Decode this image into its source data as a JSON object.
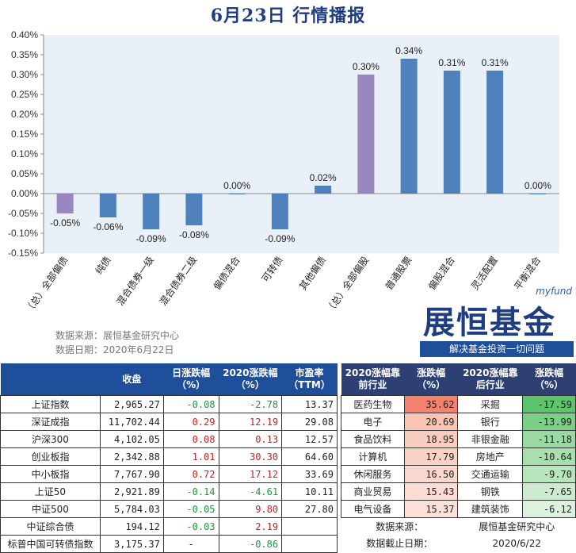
{
  "title": "6月23日 行情播报",
  "chart_data": {
    "type": "bar",
    "categories": [
      "（总）全部偏债",
      "纯债",
      "混合债券一级",
      "混合债券二级",
      "偏债混合",
      "可转债",
      "其他偏债",
      "（总）全部偏股",
      "普通股票",
      "偏股混合",
      "灵活配置",
      "平衡混合"
    ],
    "values": [
      -0.05,
      -0.06,
      -0.09,
      -0.08,
      0.0,
      -0.09,
      0.02,
      0.3,
      0.34,
      0.31,
      0.31,
      0.0
    ],
    "data_labels": [
      "-0.05%",
      "-0.06%",
      "-0.09%",
      "-0.08%",
      "0.00%",
      "-0.09%",
      "0.02%",
      "0.30%",
      "0.34%",
      "0.31%",
      "0.31%",
      "0.00%"
    ],
    "highlight": [
      0,
      7
    ],
    "ylim": [
      -0.15,
      0.4
    ],
    "yticks": [
      "-0.15%",
      "-0.10%",
      "-0.05%",
      "0.00%",
      "0.05%",
      "0.10%",
      "0.15%",
      "0.20%",
      "0.25%",
      "0.30%",
      "0.35%",
      "0.40%"
    ],
    "colors": {
      "bar": "#4f81bd",
      "highlight": "#9b87c0",
      "plot_bg": "#eaf0f8"
    }
  },
  "source_line": "数据来源：展恒基金研究中心",
  "date_line": "数据日期：2020年6月22日",
  "brand": {
    "myfund": "myfund",
    "logo": "展恒基金",
    "slogan": "解决基金投资一切问题"
  },
  "index_table": {
    "headers": [
      "",
      "收盘",
      "日涨跌幅（%）",
      "2020涨跌幅（%）",
      "市盈率（TTM）"
    ],
    "rows": [
      {
        "name": "上证指数",
        "close": "2,965.27",
        "day": "-0.08",
        "ytd": "-2.78",
        "pe": "13.37"
      },
      {
        "name": "深证成指",
        "close": "11,702.44",
        "day": "0.29",
        "ytd": "12.19",
        "pe": "29.08"
      },
      {
        "name": "沪深300",
        "close": "4,102.05",
        "day": "0.08",
        "ytd": "0.13",
        "pe": "12.57"
      },
      {
        "name": "创业板指",
        "close": "2,342.88",
        "day": "1.01",
        "ytd": "30.30",
        "pe": "64.60"
      },
      {
        "name": "中小板指",
        "close": "7,767.90",
        "day": "0.72",
        "ytd": "17.12",
        "pe": "33.69"
      },
      {
        "name": "上证50",
        "close": "2,921.89",
        "day": "-0.14",
        "ytd": "-4.61",
        "pe": "10.11"
      },
      {
        "name": "中证500",
        "close": "5,784.03",
        "day": "-0.05",
        "ytd": "9.80",
        "pe": "27.80"
      },
      {
        "name": "中证综合债",
        "close": "194.12",
        "day": "-0.03",
        "ytd": "2.19",
        "pe": ""
      },
      {
        "name": "标普中国可转债指数",
        "close": "3,175.37",
        "day": "-",
        "ytd": "-0.86",
        "pe": ""
      }
    ]
  },
  "industry_table": {
    "headers": [
      "2020涨幅靠前行业",
      "涨跌幅（%）",
      "2020涨幅靠后行业",
      "涨跌幅（%）"
    ],
    "rows": [
      {
        "top": "医药生物",
        "top_val": "35.62",
        "bottom": "采掘",
        "bottom_val": "-17.59"
      },
      {
        "top": "电子",
        "top_val": "20.69",
        "bottom": "银行",
        "bottom_val": "-13.99"
      },
      {
        "top": "食品饮料",
        "top_val": "18.95",
        "bottom": "非银金融",
        "bottom_val": "-11.18"
      },
      {
        "top": "计算机",
        "top_val": "17.79",
        "bottom": "房地产",
        "bottom_val": "-10.64"
      },
      {
        "top": "休闲服务",
        "top_val": "16.50",
        "bottom": "交通运输",
        "bottom_val": "-9.70"
      },
      {
        "top": "商业贸易",
        "top_val": "15.43",
        "bottom": "钢铁",
        "bottom_val": "-7.65"
      },
      {
        "top": "电气设备",
        "top_val": "15.37",
        "bottom": "建筑装饰",
        "bottom_val": "-6.12"
      }
    ],
    "note_source_label": "数据来源：",
    "note_source_value": "展恒基金研究中心",
    "note_date_label": "数据截止日期：",
    "note_date_value": "2020/6/22"
  }
}
